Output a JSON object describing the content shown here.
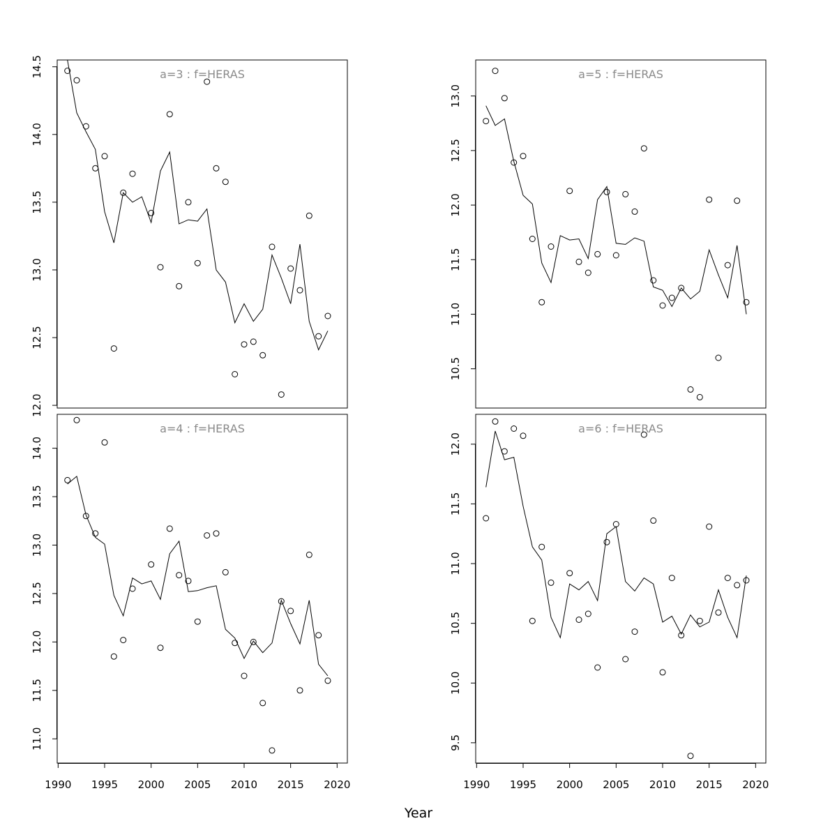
{
  "figure": {
    "xlabel": "Year",
    "x_axis": {
      "range": [
        1989.9,
        2021.1
      ],
      "ticks": [
        1990,
        1995,
        2000,
        2005,
        2010,
        2015,
        2020
      ]
    }
  },
  "chart_data": [
    {
      "type": "scatter",
      "title": "a=3  :  f=HERAS",
      "xlabel": "Year",
      "ylim": [
        11.98,
        14.55
      ],
      "yticks": [
        12.0,
        12.5,
        13.0,
        13.5,
        14.0,
        14.5
      ],
      "grid": false,
      "series": [
        {
          "kind": "points",
          "x": [
            1991,
            1992,
            1993,
            1994,
            1995,
            1996,
            1997,
            1998,
            2000,
            2001,
            2002,
            2003,
            2004,
            2005,
            2006,
            2007,
            2008,
            2009,
            2010,
            2011,
            2012,
            2013,
            2014,
            2015,
            2016,
            2017,
            2018,
            2019
          ],
          "y": [
            14.47,
            14.4,
            14.06,
            13.75,
            13.84,
            12.42,
            13.57,
            13.71,
            13.42,
            13.02,
            14.15,
            12.88,
            13.5,
            13.05,
            14.39,
            13.75,
            13.65,
            12.23,
            12.45,
            12.47,
            12.37,
            13.17,
            12.08,
            13.01,
            12.85,
            13.4,
            12.51,
            12.66
          ]
        },
        {
          "kind": "line",
          "x": [
            1991,
            1992,
            1993,
            1994,
            1995,
            1996,
            1997,
            1998,
            1999,
            2000,
            2001,
            2002,
            2003,
            2004,
            2005,
            2006,
            2007,
            2008,
            2009,
            2010,
            2011,
            2012,
            2013,
            2014,
            2015,
            2016,
            2017,
            2018,
            2019
          ],
          "y": [
            14.55,
            14.16,
            14.02,
            13.89,
            13.43,
            13.2,
            13.57,
            13.5,
            13.54,
            13.35,
            13.73,
            13.87,
            13.34,
            13.37,
            13.36,
            13.45,
            13.0,
            12.91,
            12.61,
            12.75,
            12.62,
            12.71,
            13.11,
            12.94,
            12.75,
            13.19,
            12.62,
            12.41,
            12.55
          ]
        }
      ]
    },
    {
      "type": "scatter",
      "title": "a=5  :  f=HERAS",
      "xlabel": "Year",
      "ylim": [
        10.14,
        13.33
      ],
      "yticks": [
        10.5,
        11.0,
        11.5,
        12.0,
        12.5,
        13.0
      ],
      "grid": false,
      "series": [
        {
          "kind": "points",
          "x": [
            1991,
            1992,
            1993,
            1994,
            1995,
            1996,
            1997,
            1998,
            2000,
            2001,
            2002,
            2003,
            2004,
            2005,
            2006,
            2007,
            2008,
            2009,
            2010,
            2011,
            2012,
            2013,
            2014,
            2015,
            2016,
            2017,
            2018,
            2019
          ],
          "y": [
            12.77,
            13.23,
            12.98,
            12.39,
            12.45,
            11.69,
            11.11,
            11.62,
            12.13,
            11.48,
            11.38,
            11.55,
            12.12,
            11.54,
            12.1,
            11.94,
            12.52,
            11.31,
            11.08,
            11.15,
            11.24,
            10.31,
            10.24,
            12.05,
            10.6,
            11.45,
            12.04,
            11.11
          ]
        },
        {
          "kind": "line",
          "x": [
            1991,
            1992,
            1993,
            1994,
            1995,
            1996,
            1997,
            1998,
            1999,
            2000,
            2001,
            2002,
            2003,
            2004,
            2005,
            2006,
            2007,
            2008,
            2009,
            2010,
            2011,
            2012,
            2013,
            2014,
            2015,
            2016,
            2017,
            2018,
            2019
          ],
          "y": [
            12.91,
            12.73,
            12.79,
            12.4,
            12.09,
            12.01,
            11.47,
            11.29,
            11.72,
            11.68,
            11.69,
            11.51,
            12.05,
            12.17,
            11.65,
            11.64,
            11.7,
            11.67,
            11.25,
            11.22,
            11.07,
            11.24,
            11.14,
            11.21,
            11.59,
            11.36,
            11.15,
            11.63,
            11.0
          ]
        }
      ]
    },
    {
      "type": "scatter",
      "title": "a=4  :  f=HERAS",
      "xlabel": "Year",
      "ylim": [
        10.75,
        14.35
      ],
      "yticks": [
        11.0,
        11.5,
        12.0,
        12.5,
        13.0,
        13.5,
        14.0
      ],
      "grid": false,
      "series": [
        {
          "kind": "points",
          "x": [
            1991,
            1992,
            1993,
            1994,
            1995,
            1996,
            1997,
            1998,
            2000,
            2001,
            2002,
            2003,
            2004,
            2005,
            2006,
            2007,
            2008,
            2009,
            2010,
            2011,
            2012,
            2013,
            2014,
            2015,
            2016,
            2017,
            2018,
            2019
          ],
          "y": [
            13.67,
            14.29,
            13.3,
            13.12,
            14.06,
            11.85,
            12.02,
            12.55,
            12.8,
            11.94,
            13.17,
            12.69,
            12.63,
            12.21,
            13.1,
            13.12,
            12.72,
            11.99,
            11.65,
            12.0,
            11.37,
            10.88,
            12.42,
            12.32,
            11.5,
            12.9,
            12.07,
            11.6
          ]
        },
        {
          "kind": "line",
          "x": [
            1991,
            1992,
            1993,
            1994,
            1995,
            1996,
            1997,
            1998,
            1999,
            2000,
            2001,
            2002,
            2003,
            2004,
            2005,
            2006,
            2007,
            2008,
            2009,
            2010,
            2011,
            2012,
            2013,
            2014,
            2015,
            2016,
            2017,
            2018,
            2019
          ],
          "y": [
            13.63,
            13.71,
            13.31,
            13.08,
            13.01,
            12.48,
            12.27,
            12.66,
            12.6,
            12.63,
            12.44,
            12.91,
            13.04,
            12.52,
            12.53,
            12.56,
            12.58,
            12.13,
            12.04,
            11.83,
            12.01,
            11.89,
            11.99,
            12.43,
            12.19,
            11.98,
            12.43,
            11.77,
            11.65
          ]
        }
      ]
    },
    {
      "type": "scatter",
      "title": "a=6  :  f=HERAS",
      "xlabel": "Year",
      "ylim": [
        9.33,
        12.25
      ],
      "yticks": [
        9.5,
        10.0,
        10.5,
        11.0,
        11.5,
        12.0
      ],
      "grid": false,
      "series": [
        {
          "kind": "points",
          "x": [
            1991,
            1992,
            1993,
            1994,
            1995,
            1996,
            1997,
            1998,
            2000,
            2001,
            2002,
            2003,
            2004,
            2005,
            2006,
            2007,
            2008,
            2009,
            2010,
            2011,
            2012,
            2013,
            2014,
            2015,
            2016,
            2017,
            2018,
            2019
          ],
          "y": [
            11.38,
            12.19,
            11.94,
            12.13,
            12.07,
            10.52,
            11.14,
            10.84,
            10.92,
            10.53,
            10.58,
            10.13,
            11.18,
            11.33,
            10.2,
            10.43,
            12.08,
            11.36,
            10.09,
            10.88,
            10.4,
            9.39,
            10.52,
            11.31,
            10.59,
            10.88,
            10.82,
            10.86
          ]
        },
        {
          "kind": "line",
          "x": [
            1991,
            1992,
            1993,
            1994,
            1995,
            1996,
            1997,
            1998,
            1999,
            2000,
            2001,
            2002,
            2003,
            2004,
            2005,
            2006,
            2007,
            2008,
            2009,
            2010,
            2011,
            2012,
            2013,
            2014,
            2015,
            2016,
            2017,
            2018,
            2019
          ],
          "y": [
            11.64,
            12.11,
            11.87,
            11.89,
            11.48,
            11.14,
            11.03,
            10.55,
            10.38,
            10.83,
            10.78,
            10.85,
            10.69,
            11.25,
            11.31,
            10.85,
            10.77,
            10.88,
            10.83,
            10.51,
            10.56,
            10.41,
            10.57,
            10.47,
            10.51,
            10.78,
            10.55,
            10.38,
            10.9
          ]
        }
      ]
    }
  ]
}
